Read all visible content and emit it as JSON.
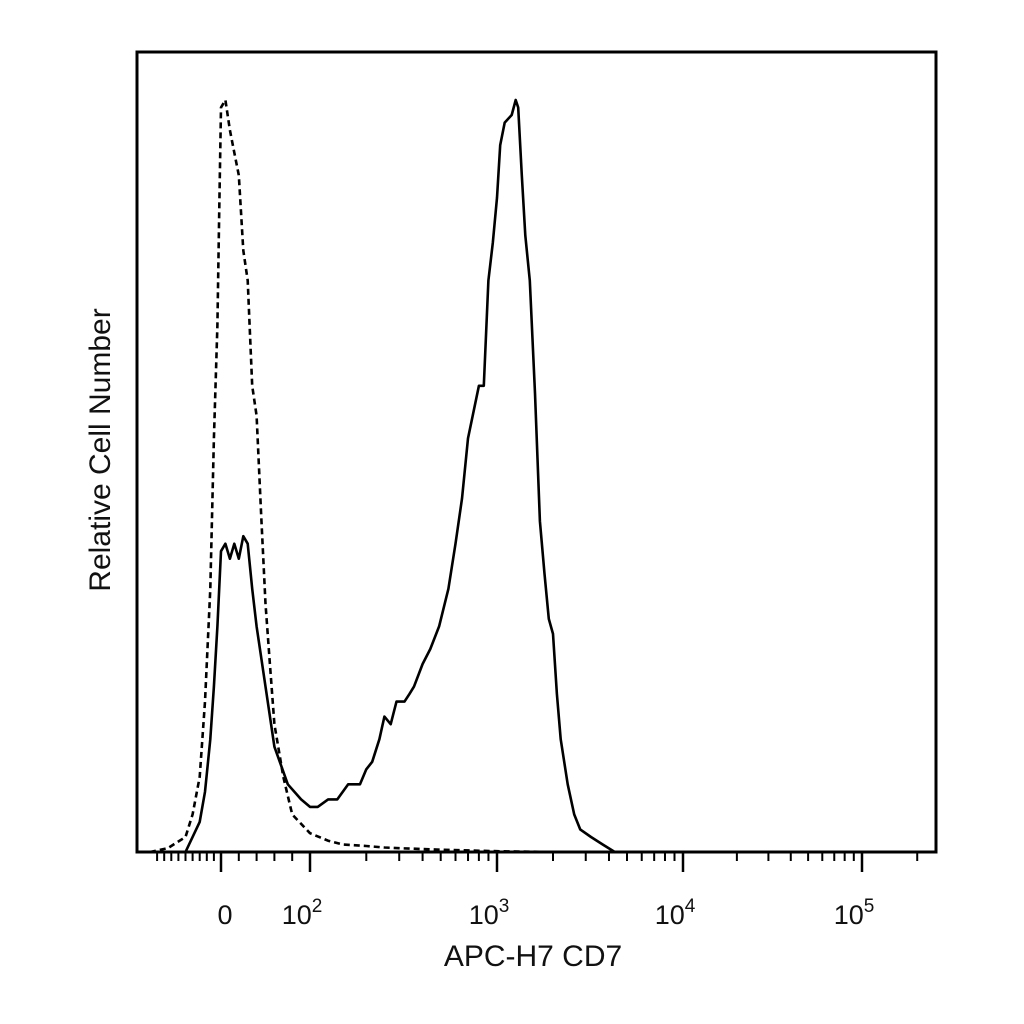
{
  "chart_data": {
    "type": "line",
    "title": "",
    "xlabel": "APC-H7 CD7",
    "ylabel": "Relative Cell Number",
    "x_scale": "biexponential (linear near 0, logarithmic above ~10^2)",
    "xlim": [
      -200,
      250000
    ],
    "ylim": [
      0,
      1.0
    ],
    "y_ticks_labeled": false,
    "grid": false,
    "legend": "none",
    "x_ticks": [
      {
        "value": 0,
        "base": "0",
        "exp": ""
      },
      {
        "value": 100,
        "base": "10",
        "exp": "2"
      },
      {
        "value": 1000,
        "base": "10",
        "exp": "3"
      },
      {
        "value": 10000,
        "base": "10",
        "exp": "4"
      },
      {
        "value": 100000,
        "base": "10",
        "exp": "5"
      }
    ],
    "series": [
      {
        "style": "solid",
        "color": "#000000",
        "x": [
          -100,
          -60,
          -45,
          -30,
          -20,
          -10,
          0,
          5,
          10,
          15,
          20,
          25,
          30,
          35,
          40,
          50,
          60,
          75,
          90,
          100,
          110,
          125,
          140,
          160,
          185,
          200,
          215,
          235,
          250,
          270,
          290,
          320,
          340,
          360,
          400,
          440,
          490,
          550,
          600,
          650,
          700,
          800,
          850,
          900,
          950,
          1000,
          1040,
          1100,
          1200,
          1260,
          1300,
          1360,
          1420,
          1500,
          1600,
          1700,
          1800,
          1900,
          2000,
          2100,
          2200,
          2400,
          2600,
          2800,
          3200,
          3700,
          4300,
          5000,
          5600,
          6100,
          6600,
          10000,
          100000,
          250000
        ],
        "y": [
          0.0,
          0.04,
          0.08,
          0.15,
          0.22,
          0.3,
          0.4,
          0.41,
          0.39,
          0.41,
          0.39,
          0.42,
          0.41,
          0.35,
          0.3,
          0.22,
          0.14,
          0.09,
          0.07,
          0.06,
          0.06,
          0.07,
          0.07,
          0.09,
          0.09,
          0.11,
          0.12,
          0.15,
          0.18,
          0.17,
          0.2,
          0.2,
          0.21,
          0.22,
          0.25,
          0.27,
          0.3,
          0.35,
          0.41,
          0.47,
          0.55,
          0.62,
          0.62,
          0.76,
          0.81,
          0.87,
          0.94,
          0.97,
          0.98,
          1.0,
          0.99,
          0.9,
          0.82,
          0.76,
          0.61,
          0.44,
          0.37,
          0.31,
          0.29,
          0.21,
          0.15,
          0.09,
          0.05,
          0.03,
          0.02,
          0.01,
          0.0,
          0.0,
          0.0,
          0.0,
          0.0,
          0.0,
          0.0,
          0.0
        ]
      },
      {
        "style": "dashed",
        "color": "#000000",
        "x": [
          -200,
          -150,
          -100,
          -80,
          -60,
          -45,
          -30,
          -20,
          -10,
          -5,
          0,
          5,
          10,
          15,
          20,
          25,
          30,
          35,
          40,
          45,
          50,
          55,
          60,
          70,
          80,
          100,
          125,
          150,
          200,
          250,
          300,
          500,
          1000,
          2000,
          4000,
          250000
        ],
        "y": [
          0.0,
          0.005,
          0.02,
          0.05,
          0.1,
          0.2,
          0.35,
          0.55,
          0.7,
          0.85,
          0.99,
          1.0,
          0.96,
          0.93,
          0.9,
          0.8,
          0.76,
          0.62,
          0.58,
          0.45,
          0.33,
          0.25,
          0.17,
          0.1,
          0.05,
          0.025,
          0.015,
          0.01,
          0.008,
          0.006,
          0.005,
          0.003,
          0.001,
          0.0,
          0.0,
          0.0
        ]
      }
    ]
  }
}
